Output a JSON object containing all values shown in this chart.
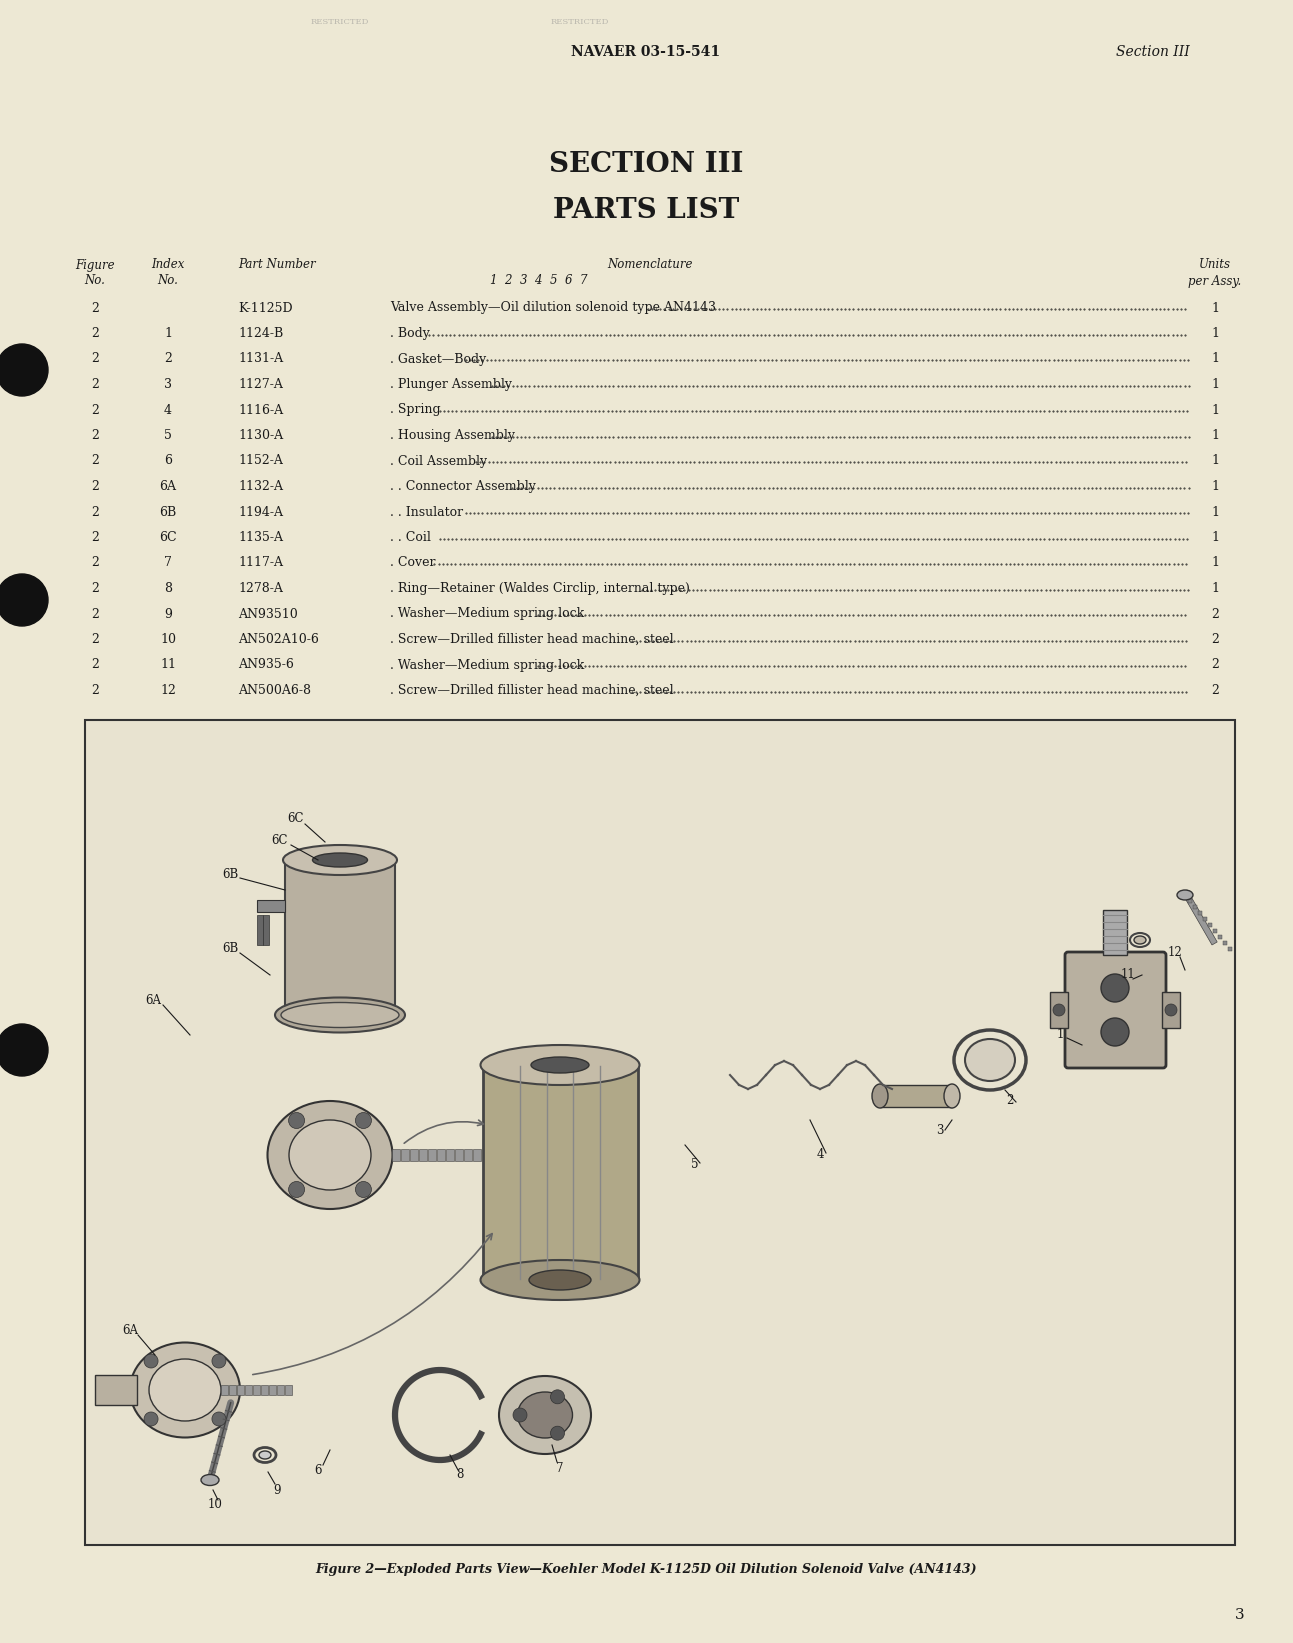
{
  "bg_color": "#ede8d4",
  "text_color": "#1a1a1a",
  "header_left": "NAVAER 03-15-541",
  "header_right": "Section III",
  "section_title_1": "SECTION III",
  "section_title_2": "PARTS LIST",
  "parts": [
    [
      "2",
      "",
      "K-1125D",
      "Valve Assembly—Oil dilution solenoid type AN4143",
      "1"
    ],
    [
      "2",
      "1",
      "1124-B",
      ". Body",
      "1"
    ],
    [
      "2",
      "2",
      "1131-A",
      ". Gasket—Body",
      "1"
    ],
    [
      "2",
      "3",
      "1127-A",
      ". Plunger Assembly",
      "1"
    ],
    [
      "2",
      "4",
      "1116-A",
      ". Spring",
      "1"
    ],
    [
      "2",
      "5",
      "1130-A",
      ". Housing Assembly",
      "1"
    ],
    [
      "2",
      "6",
      "1152-A",
      ". Coil Assembly",
      "1"
    ],
    [
      "2",
      "6A",
      "1132-A",
      ". . Connector Assembly",
      "1"
    ],
    [
      "2",
      "6B",
      "1194-A",
      ". . Insulator",
      "1"
    ],
    [
      "2",
      "6C",
      "1135-A",
      ". . Coil",
      "1"
    ],
    [
      "2",
      "7",
      "1117-A",
      ". Cover",
      "1"
    ],
    [
      "2",
      "8",
      "1278-A",
      ". Ring—Retainer (Waldes Circlip, internal type)",
      "1"
    ],
    [
      "2",
      "9",
      "AN93510",
      ". Washer—Medium spring lock",
      "2"
    ],
    [
      "2",
      "10",
      "AN502A10-6",
      ". Screw—Drilled fillister head machine, steel",
      "2"
    ],
    [
      "2",
      "11",
      "AN935-6",
      ". Washer—Medium spring lock",
      "2"
    ],
    [
      "2",
      "12",
      "AN500A6-8",
      ". Screw—Drilled fillister head machine, steel",
      "2"
    ]
  ],
  "figure_caption": "Figure 2—Exploded Parts View—Koehler Model K-1125D Oil Dilution Solenoid Valve (AN4143)",
  "page_number": "3",
  "dot_color": "#111111",
  "box_border_color": "#333333"
}
